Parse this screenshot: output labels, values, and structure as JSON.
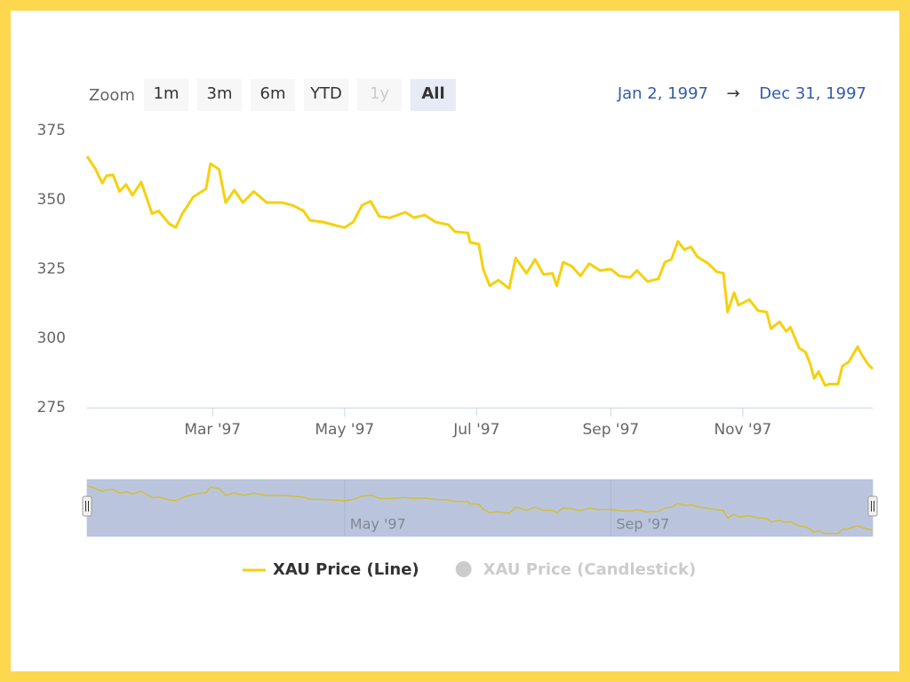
{
  "range_selector": {
    "label": "Zoom",
    "buttons": [
      {
        "text": "1m"
      },
      {
        "text": "3m"
      },
      {
        "text": "6m"
      },
      {
        "text": "YTD"
      },
      {
        "text": "1y",
        "disabled": true
      },
      {
        "text": "All",
        "selected": true
      }
    ],
    "from": "Jan 2, 1997",
    "separator": "→",
    "to": "Dec 31, 1997"
  },
  "chart_data": {
    "type": "line",
    "x": [
      "1997-01-02",
      "1997-01-06",
      "1997-01-09",
      "1997-01-11",
      "1997-01-14",
      "1997-01-17",
      "1997-01-20",
      "1997-01-23",
      "1997-01-27",
      "1997-02-01",
      "1997-02-04",
      "1997-02-09",
      "1997-02-12",
      "1997-02-15",
      "1997-02-20",
      "1997-02-26",
      "1997-02-28",
      "1997-03-04",
      "1997-03-07",
      "1997-03-11",
      "1997-03-15",
      "1997-03-20",
      "1997-03-26",
      "1997-04-02",
      "1997-04-07",
      "1997-04-12",
      "1997-04-15",
      "1997-04-21",
      "1997-04-27",
      "1997-05-01",
      "1997-05-05",
      "1997-05-09",
      "1997-05-13",
      "1997-05-17",
      "1997-05-22",
      "1997-05-29",
      "1997-06-02",
      "1997-06-07",
      "1997-06-12",
      "1997-06-18",
      "1997-06-21",
      "1997-06-27",
      "1997-06-28",
      "1997-07-02",
      "1997-07-04",
      "1997-07-07",
      "1997-07-11",
      "1997-07-16",
      "1997-07-19",
      "1997-07-24",
      "1997-07-28",
      "1997-08-01",
      "1997-08-05",
      "1997-08-07",
      "1997-08-10",
      "1997-08-14",
      "1997-08-18",
      "1997-08-22",
      "1997-08-27",
      "1997-09-01",
      "1997-09-05",
      "1997-09-10",
      "1997-09-13",
      "1997-09-18",
      "1997-09-23",
      "1997-09-26",
      "1997-09-29",
      "1997-10-02",
      "1997-10-05",
      "1997-10-08",
      "1997-10-11",
      "1997-10-16",
      "1997-10-20",
      "1997-10-23",
      "1997-10-25",
      "1997-10-28",
      "1997-10-30",
      "1997-11-04",
      "1997-11-08",
      "1997-11-12",
      "1997-11-14",
      "1997-11-18",
      "1997-11-21",
      "1997-11-23",
      "1997-11-27",
      "1997-11-30",
      "1997-12-02",
      "1997-12-04",
      "1997-12-06",
      "1997-12-09",
      "1997-12-11",
      "1997-12-15",
      "1997-12-17",
      "1997-12-20",
      "1997-12-24",
      "1997-12-26",
      "1997-12-29",
      "1997-12-31"
    ],
    "series": [
      {
        "name": "XAU Price (Line)",
        "color": "#f5d10f",
        "visible": true,
        "values": [
          365.7,
          361,
          356,
          358.7,
          359,
          353,
          355.5,
          351.6,
          356.4,
          345,
          346,
          341.3,
          340,
          345,
          351,
          354,
          363,
          361,
          349,
          353.5,
          349,
          353,
          349,
          349,
          348,
          346,
          342.6,
          342,
          340.7,
          340,
          342,
          348,
          349.5,
          344,
          343.5,
          345.5,
          343.6,
          344.5,
          342,
          341,
          338.5,
          338,
          334.6,
          334,
          325,
          319,
          321,
          318,
          329,
          323.5,
          328.5,
          323,
          323.5,
          319,
          327.5,
          326,
          322.5,
          327,
          324.5,
          325,
          322.5,
          322,
          324.5,
          320.5,
          321.5,
          327.5,
          328.5,
          335,
          332,
          333,
          329.5,
          327,
          324,
          323.5,
          309.5,
          316.5,
          312,
          314,
          310,
          309.5,
          303.5,
          306,
          302.5,
          304,
          296.5,
          295,
          291,
          285.5,
          288,
          283,
          283.5,
          283.5,
          290,
          291.5,
          297,
          294,
          290.5,
          289
        ]
      },
      {
        "name": "XAU Price (Candlestick)",
        "color": "#cccccc",
        "visible": false
      }
    ],
    "xlim": [
      "1997-01-02",
      "1997-12-31"
    ],
    "xticks": [
      {
        "value": "1997-03-01",
        "label": "Mar '97"
      },
      {
        "value": "1997-05-01",
        "label": "May '97"
      },
      {
        "value": "1997-07-01",
        "label": "Jul '97"
      },
      {
        "value": "1997-09-01",
        "label": "Sep '97"
      },
      {
        "value": "1997-11-01",
        "label": "Nov '97"
      }
    ],
    "ylim": [
      275,
      375
    ],
    "yticks": [
      275,
      300,
      325,
      350,
      375
    ],
    "grid": false,
    "navigator": {
      "xticks": [
        {
          "value": "1997-05-01",
          "label": "May '97"
        },
        {
          "value": "1997-09-01",
          "label": "Sep '97"
        }
      ]
    },
    "legend": "bottom"
  }
}
